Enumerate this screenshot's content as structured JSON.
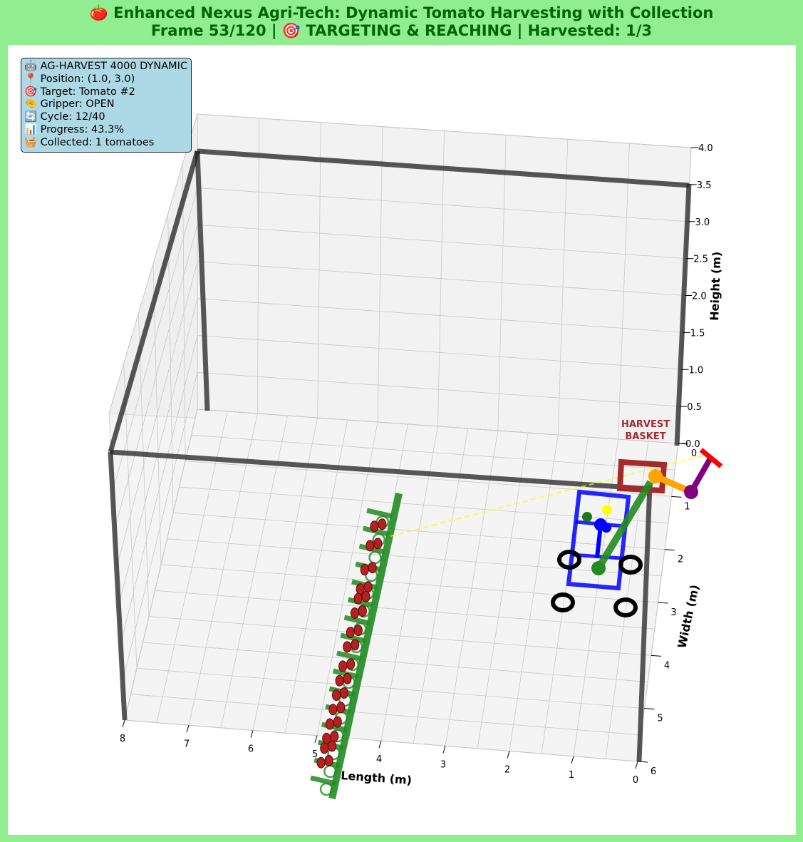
{
  "title": {
    "line1": "🍅 Enhanced Nexus Agri-Tech: Dynamic Tomato Harvesting with Collection",
    "line2": "Frame 53/120 | 🎯 TARGETING & REACHING | Harvested: 1/3"
  },
  "info_box": {
    "lines": [
      "🤖 AG-HARVEST 4000 DYNAMIC",
      "📍 Position: (1.0, 3.0)",
      "🎯 Target: Tomato #2",
      "🤏 Gripper: OPEN",
      "🔄 Cycle: 12/40",
      "📊 Progress: 43.3%",
      "🧺 Collected: 1 tomatoes"
    ]
  },
  "basket_label": [
    "HARVEST",
    "BASKET"
  ],
  "colors": {
    "background": "#90ee90",
    "title": "#006400",
    "info_box": "#add8e6",
    "plant": "#228b22",
    "tomato": "#b22222",
    "robot_frame": "#0000ff",
    "basket": "#a52a2a",
    "arm_upper": "#ffa500",
    "arm_lower": "#800080",
    "gripper": "#ff0000",
    "target_line": "#ffff00",
    "greenhouse_frame": "#222222"
  },
  "chart_data": {
    "type": "scatter3d",
    "title": "",
    "xlabel": "Length (m)",
    "ylabel": "Width (m)",
    "zlabel": "Height (m)",
    "xlim": [
      0,
      8
    ],
    "ylim": [
      0,
      6
    ],
    "zlim": [
      0,
      4
    ],
    "x_ticks": [
      "0",
      "1",
      "2",
      "3",
      "4",
      "5",
      "6",
      "7",
      "8"
    ],
    "y_ticks": [
      "0",
      "1",
      "2",
      "3",
      "4",
      "5",
      "6"
    ],
    "z_ticks": [
      "0.0",
      "0.5",
      "1.0",
      "1.5",
      "2.0",
      "2.5",
      "3.0",
      "3.5",
      "4.0"
    ],
    "grid": true,
    "robot": {
      "x": 1.0,
      "y": 3.0
    },
    "basket": {
      "x": 0.5,
      "y": 0.8
    },
    "plant_row": {
      "x": 4.2,
      "y_start": 0.5,
      "y_end": 5.8
    },
    "tomatoes_y": [
      0.8,
      1.2,
      1.7,
      2.1,
      2.3,
      2.6,
      3.0,
      3.3,
      3.7,
      4.0,
      4.3,
      4.6,
      4.9,
      5.2,
      5.4,
      5.7
    ],
    "target_tomato": {
      "index": 2,
      "x": 4.1,
      "y": 1.2
    }
  }
}
